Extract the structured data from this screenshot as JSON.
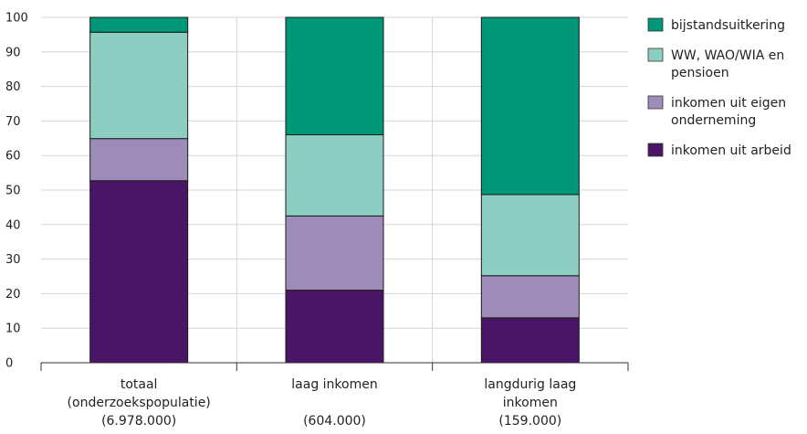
{
  "chart_data": {
    "type": "bar",
    "stacked": true,
    "categories": [
      [
        "totaal",
        "(onderzoekspopulatie)",
        "(6.978.000)"
      ],
      [
        "laag inkomen",
        "",
        "(604.000)"
      ],
      [
        "langdurig laag",
        "inkomen",
        "(159.000)"
      ]
    ],
    "series": [
      {
        "name": "inkomen uit arbeid",
        "color": "#4a1566",
        "values": [
          52.7,
          21.0,
          13.0
        ]
      },
      {
        "name": "inkomen uit eigen onderneming",
        "color": "#9e8bb9",
        "values": [
          12.2,
          21.5,
          12.2
        ]
      },
      {
        "name": "WW, WAO/WIA en pensioen",
        "color": "#8ccfc2",
        "values": [
          30.8,
          23.5,
          23.5
        ]
      },
      {
        "name": "bijstandsuitkering",
        "color": "#009779",
        "values": [
          4.3,
          34.0,
          51.3
        ]
      }
    ],
    "ylim": [
      0,
      100
    ],
    "yticks": [
      0,
      10,
      20,
      30,
      40,
      50,
      60,
      70,
      80,
      90,
      100
    ],
    "grid": true,
    "legend": {
      "position": "right",
      "entries": [
        {
          "lines": [
            "bijstandsuitkering"
          ],
          "color": "#009779"
        },
        {
          "lines": [
            "WW, WAO/WIA en",
            "pensioen"
          ],
          "color": "#8ccfc2"
        },
        {
          "lines": [
            "inkomen uit eigen",
            "onderneming"
          ],
          "color": "#9e8bb9"
        },
        {
          "lines": [
            "inkomen uit arbeid"
          ],
          "color": "#4a1566"
        }
      ]
    }
  }
}
